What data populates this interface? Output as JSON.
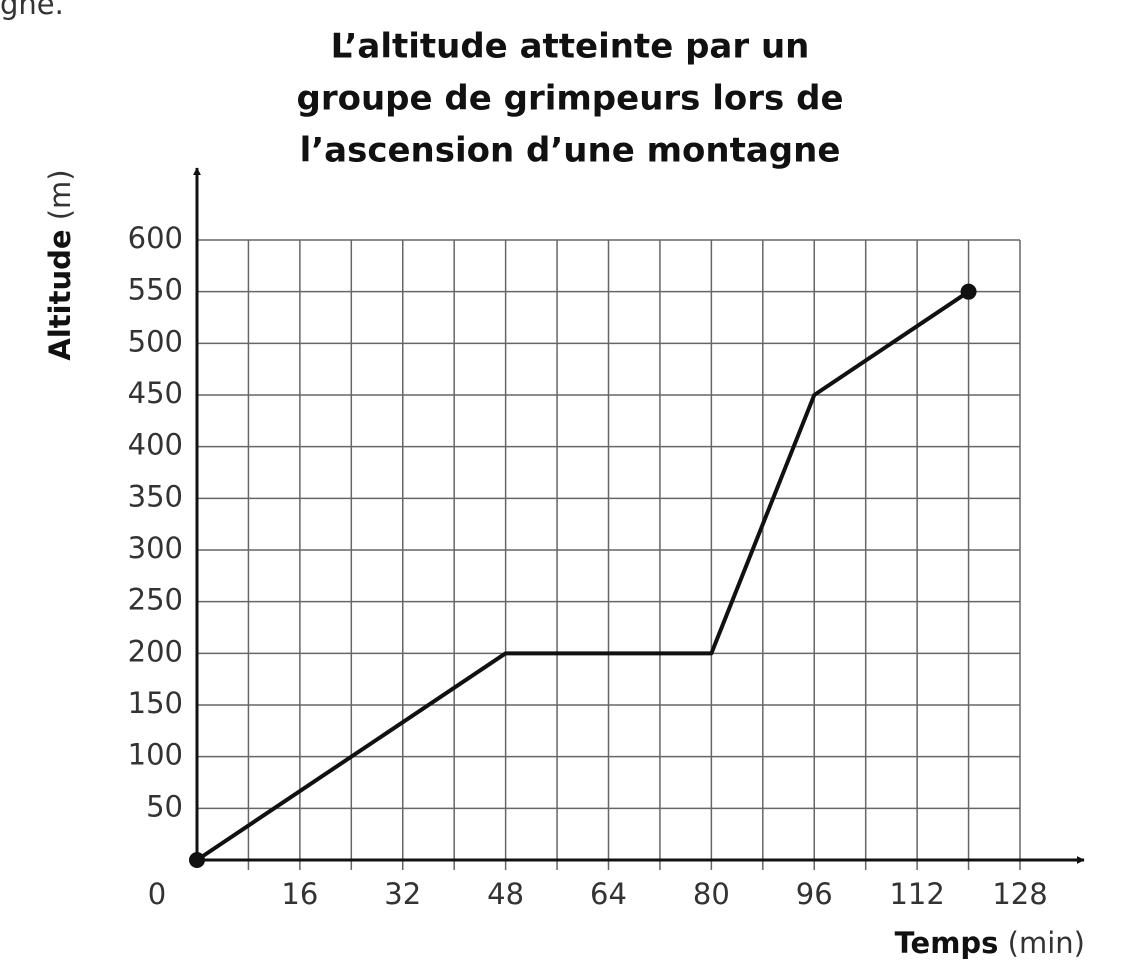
{
  "chart_data": {
    "type": "line",
    "caption_fragment": "gne.",
    "title": [
      "L’altitude atteinte par un",
      "groupe de grimpeurs lors de",
      "l’ascension d’une montagne"
    ],
    "y_label": "Altitude",
    "y_unit": "(m)",
    "x_label": "Temps",
    "x_unit": "(min)",
    "x": [
      0,
      48,
      80,
      96,
      120
    ],
    "series": [
      {
        "color": "#111111",
        "values": [
          0,
          200,
          200,
          450,
          550
        ]
      }
    ],
    "xlim": [
      0,
      128
    ],
    "ylim": [
      0,
      600
    ],
    "xticks": [
      0,
      16,
      32,
      48,
      64,
      80,
      96,
      112,
      128
    ],
    "xminor_ticks": [
      8,
      24,
      40,
      56,
      72,
      88,
      104,
      120
    ],
    "yticks": [
      50,
      100,
      150,
      200,
      250,
      300,
      350,
      400,
      450,
      500,
      550,
      600
    ],
    "grid": true
  }
}
